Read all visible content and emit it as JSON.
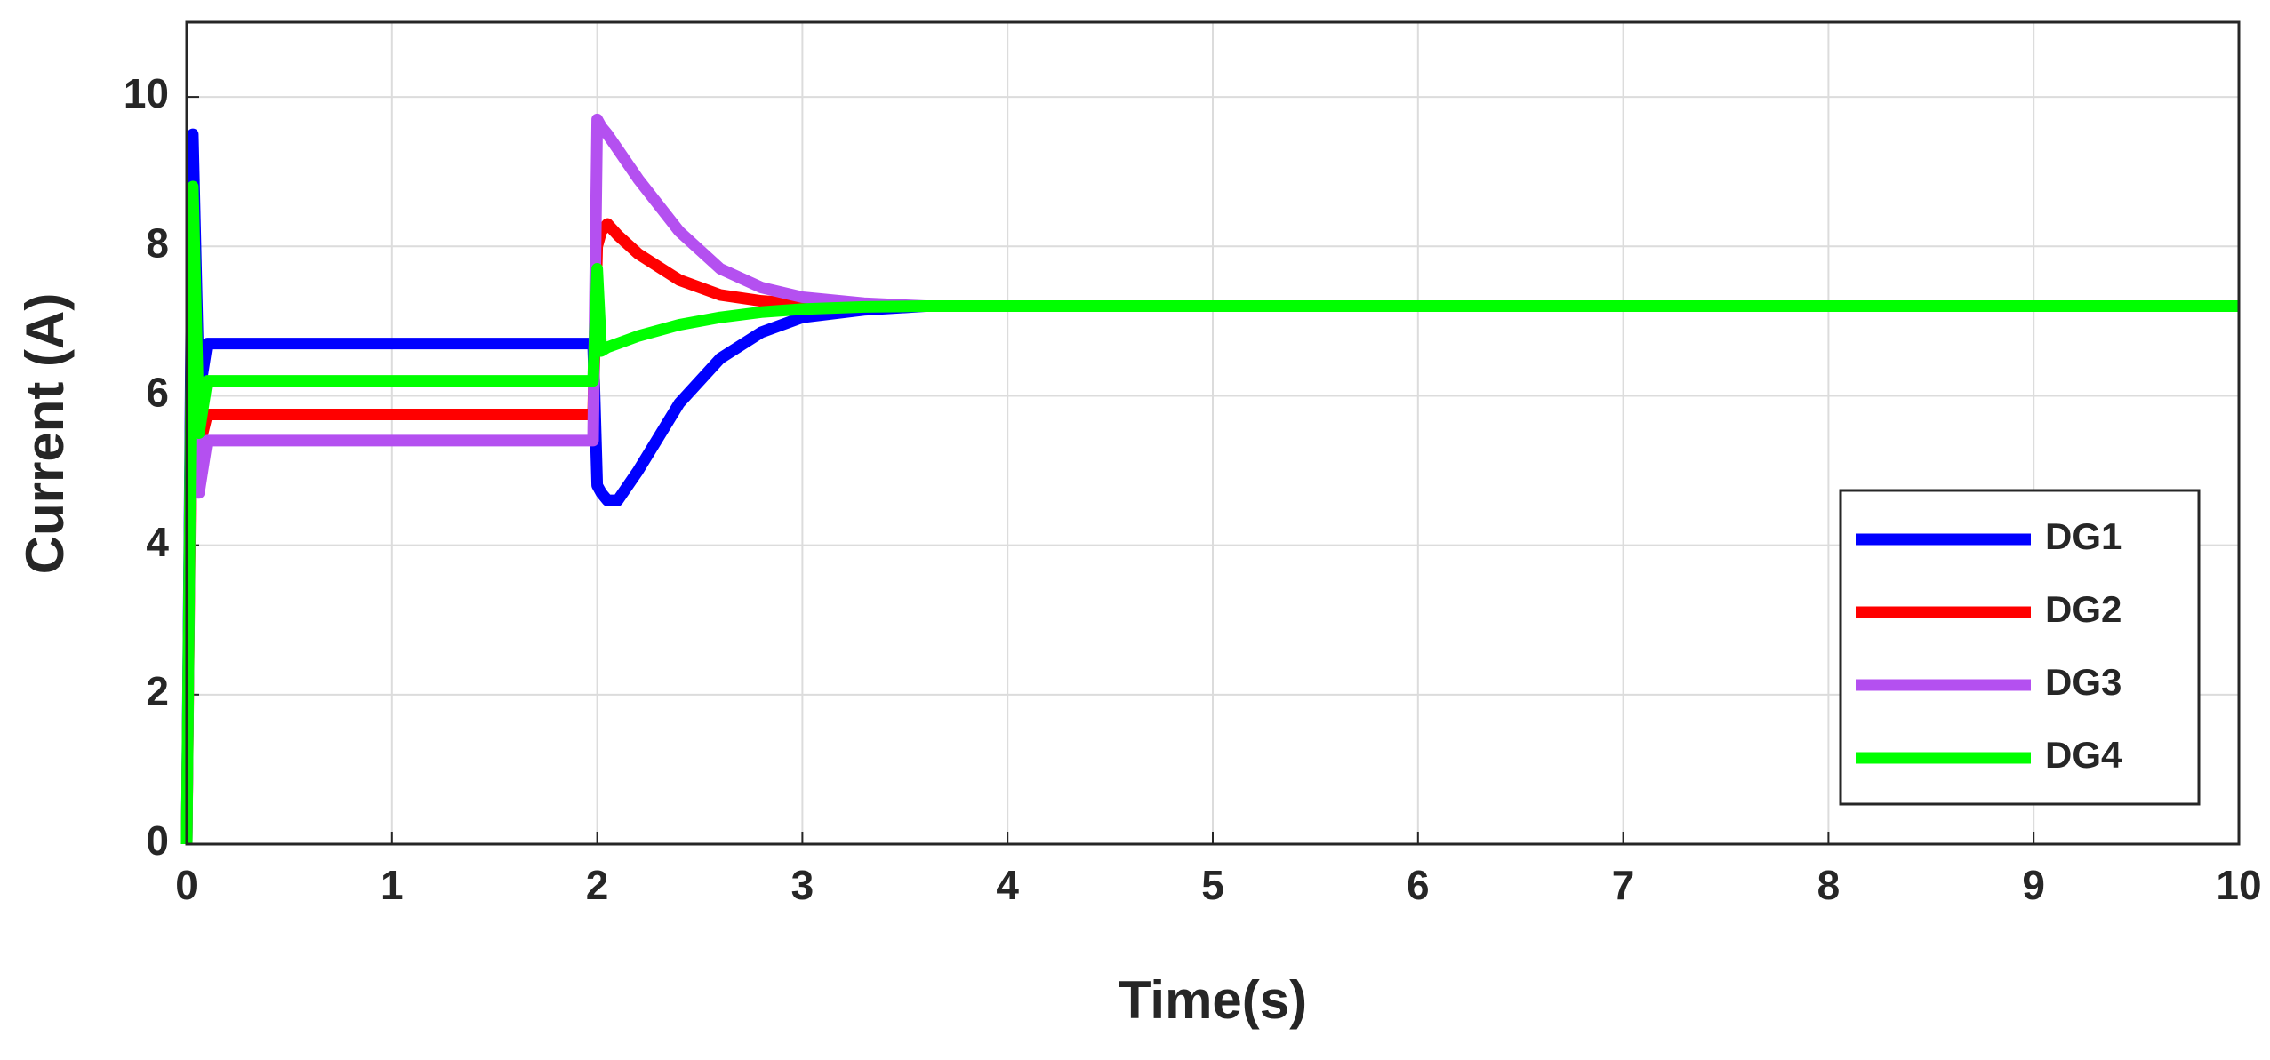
{
  "chart_data": {
    "type": "line",
    "x_label": "Time(s)",
    "y_label": "Current (A)",
    "x": [
      0,
      0.03,
      0.06,
      0.1,
      0.15,
      1,
      1.98,
      2.0,
      2.02,
      2.05,
      2.1,
      2.2,
      2.4,
      2.6,
      2.8,
      3.0,
      3.3,
      3.6,
      4,
      6,
      8,
      10
    ],
    "series": [
      {
        "name": "DG1",
        "color": "#0000ff",
        "values": [
          0,
          9.5,
          6.0,
          6.7,
          6.7,
          6.7,
          6.7,
          4.8,
          4.7,
          4.6,
          4.6,
          5.0,
          5.9,
          6.5,
          6.85,
          7.05,
          7.15,
          7.2,
          7.2,
          7.2,
          7.2,
          7.2
        ]
      },
      {
        "name": "DG2",
        "color": "#ff0000",
        "values": [
          0,
          8.0,
          5.3,
          5.75,
          5.75,
          5.75,
          5.75,
          8.0,
          8.2,
          8.3,
          8.15,
          7.9,
          7.55,
          7.35,
          7.27,
          7.23,
          7.2,
          7.2,
          7.2,
          7.2,
          7.2,
          7.2
        ]
      },
      {
        "name": "DG3",
        "color": "#b450f0",
        "values": [
          0,
          8.5,
          4.7,
          5.4,
          5.4,
          5.4,
          5.4,
          9.7,
          9.6,
          9.5,
          9.3,
          8.9,
          8.2,
          7.7,
          7.45,
          7.32,
          7.24,
          7.2,
          7.2,
          7.2,
          7.2,
          7.2
        ]
      },
      {
        "name": "DG4",
        "color": "#00ff00",
        "values": [
          0,
          8.8,
          5.5,
          6.2,
          6.2,
          6.2,
          6.2,
          7.7,
          6.6,
          6.65,
          6.7,
          6.8,
          6.95,
          7.05,
          7.12,
          7.16,
          7.19,
          7.2,
          7.2,
          7.2,
          7.2,
          7.2
        ]
      }
    ],
    "xlim": [
      0,
      10
    ],
    "xticks": [
      0,
      1,
      2,
      3,
      4,
      5,
      6,
      7,
      8,
      9,
      10
    ],
    "ylim": [
      0,
      11
    ],
    "yticks": [
      0,
      2,
      4,
      6,
      8,
      10
    ],
    "grid": true,
    "legend": "lower right"
  }
}
